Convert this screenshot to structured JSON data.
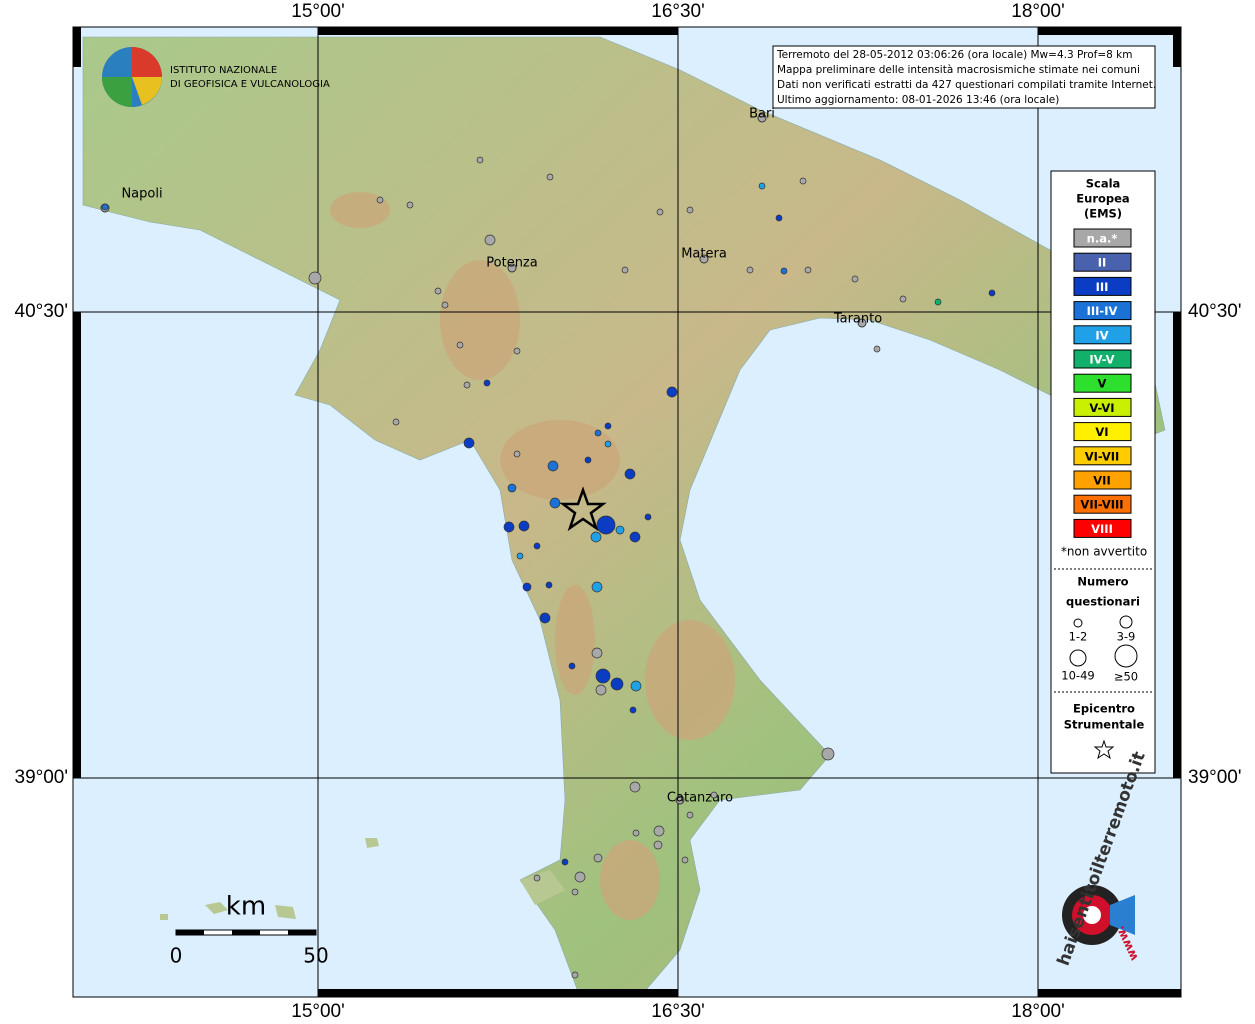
{
  "header": {
    "lines": [
      "Terremoto del 28-05-2012 03:06:26 (ora locale) Mw=4.3 Prof=8 km",
      "Mappa preliminare delle intensità macrosismiche stimate nei comuni",
      "Dati non verificati estratti da 427 questionari compilati tramite Internet.",
      "Ultimo aggiornamento: 08-01-2026 13:46 (ora locale)"
    ]
  },
  "logo": {
    "lines": [
      "ISTITUTO NAZIONALE",
      "DI GEOFISICA E VULCANOLOGIA"
    ]
  },
  "axes": {
    "top": [
      "15°00'",
      "16°30'",
      "18°00'"
    ],
    "bottom": [
      "15°00'",
      "16°30'",
      "18°00'"
    ],
    "left": [
      "40°30'",
      "39°00'"
    ],
    "right": [
      "40°30'",
      "39°00'"
    ]
  },
  "cities": [
    "Napoli",
    "Potenza",
    "Matera",
    "Bari",
    "Taranto",
    "Catanzaro"
  ],
  "legend": {
    "title": [
      "Scala",
      "Europea",
      "(EMS)"
    ],
    "classes": [
      {
        "label": "n.a.*",
        "color": "#a8a8a8"
      },
      {
        "label": "II",
        "color": "#4a62ae"
      },
      {
        "label": "III",
        "color": "#0b3cc4"
      },
      {
        "label": "III-IV",
        "color": "#1a72d6"
      },
      {
        "label": "IV",
        "color": "#20a0e6"
      },
      {
        "label": "IV-V",
        "color": "#12b06a"
      },
      {
        "label": "V",
        "color": "#2ee02e"
      },
      {
        "label": "V-VI",
        "color": "#c8f000"
      },
      {
        "label": "VI",
        "color": "#fff000"
      },
      {
        "label": "VI-VII",
        "color": "#ffcc00"
      },
      {
        "label": "VII",
        "color": "#ffa200"
      },
      {
        "label": "VII-VIII",
        "color": "#ff7000"
      },
      {
        "label": "VIII",
        "color": "#ff0000"
      }
    ],
    "note": "*non avvertito",
    "size_title": [
      "Numero",
      "questionari"
    ],
    "sizes": [
      "1-2",
      "3-9",
      "10-49",
      "≥50"
    ],
    "epicenter_title": [
      "Epicentro",
      "Strumentale"
    ]
  },
  "scale": {
    "unit": "km",
    "ticks": [
      "0",
      "50"
    ]
  },
  "site_logo": {
    "text": "haisentitoilterremoto.it",
    "prefix": "www."
  }
}
